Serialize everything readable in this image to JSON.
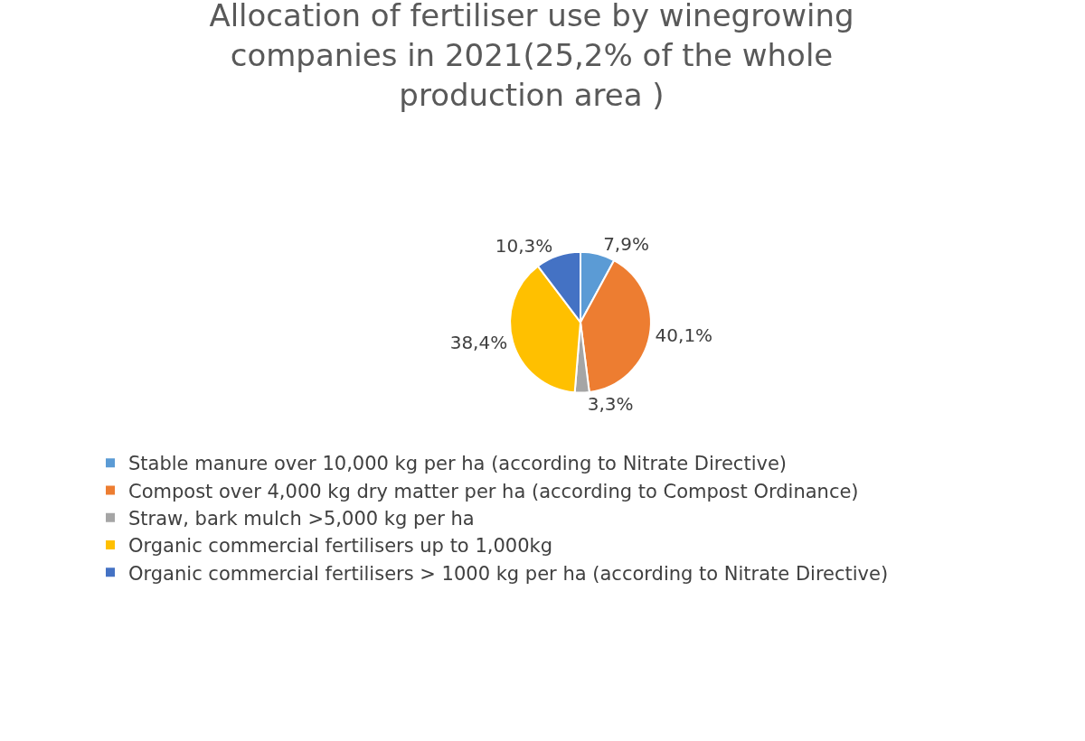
{
  "chart_data": {
    "type": "pie",
    "title": "Allocation of fertiliser use by winegrowing companies in 2021(25,2% of the whole production area )",
    "categories": [
      "Stable manure over 10,000 kg per ha (according to Nitrate Directive)",
      "Compost over 4,000 kg dry matter per ha (according to Compost Ordinance)",
      "Straw, bark mulch >5,000 kg per ha",
      "Organic commercial fertilisers up to 1,000kg",
      "Organic commercial fertilisers > 1000 kg per ha (according to Nitrate Directive)"
    ],
    "values": [
      7.9,
      40.1,
      3.3,
      38.4,
      10.3
    ],
    "value_labels": [
      "7,9%",
      "40,1%",
      "3,3%",
      "38,4%",
      "10,3%"
    ],
    "colors": [
      "#5b9bd5",
      "#ed7d31",
      "#a5a5a5",
      "#ffc000",
      "#4472c4"
    ],
    "legend": "bottom"
  }
}
